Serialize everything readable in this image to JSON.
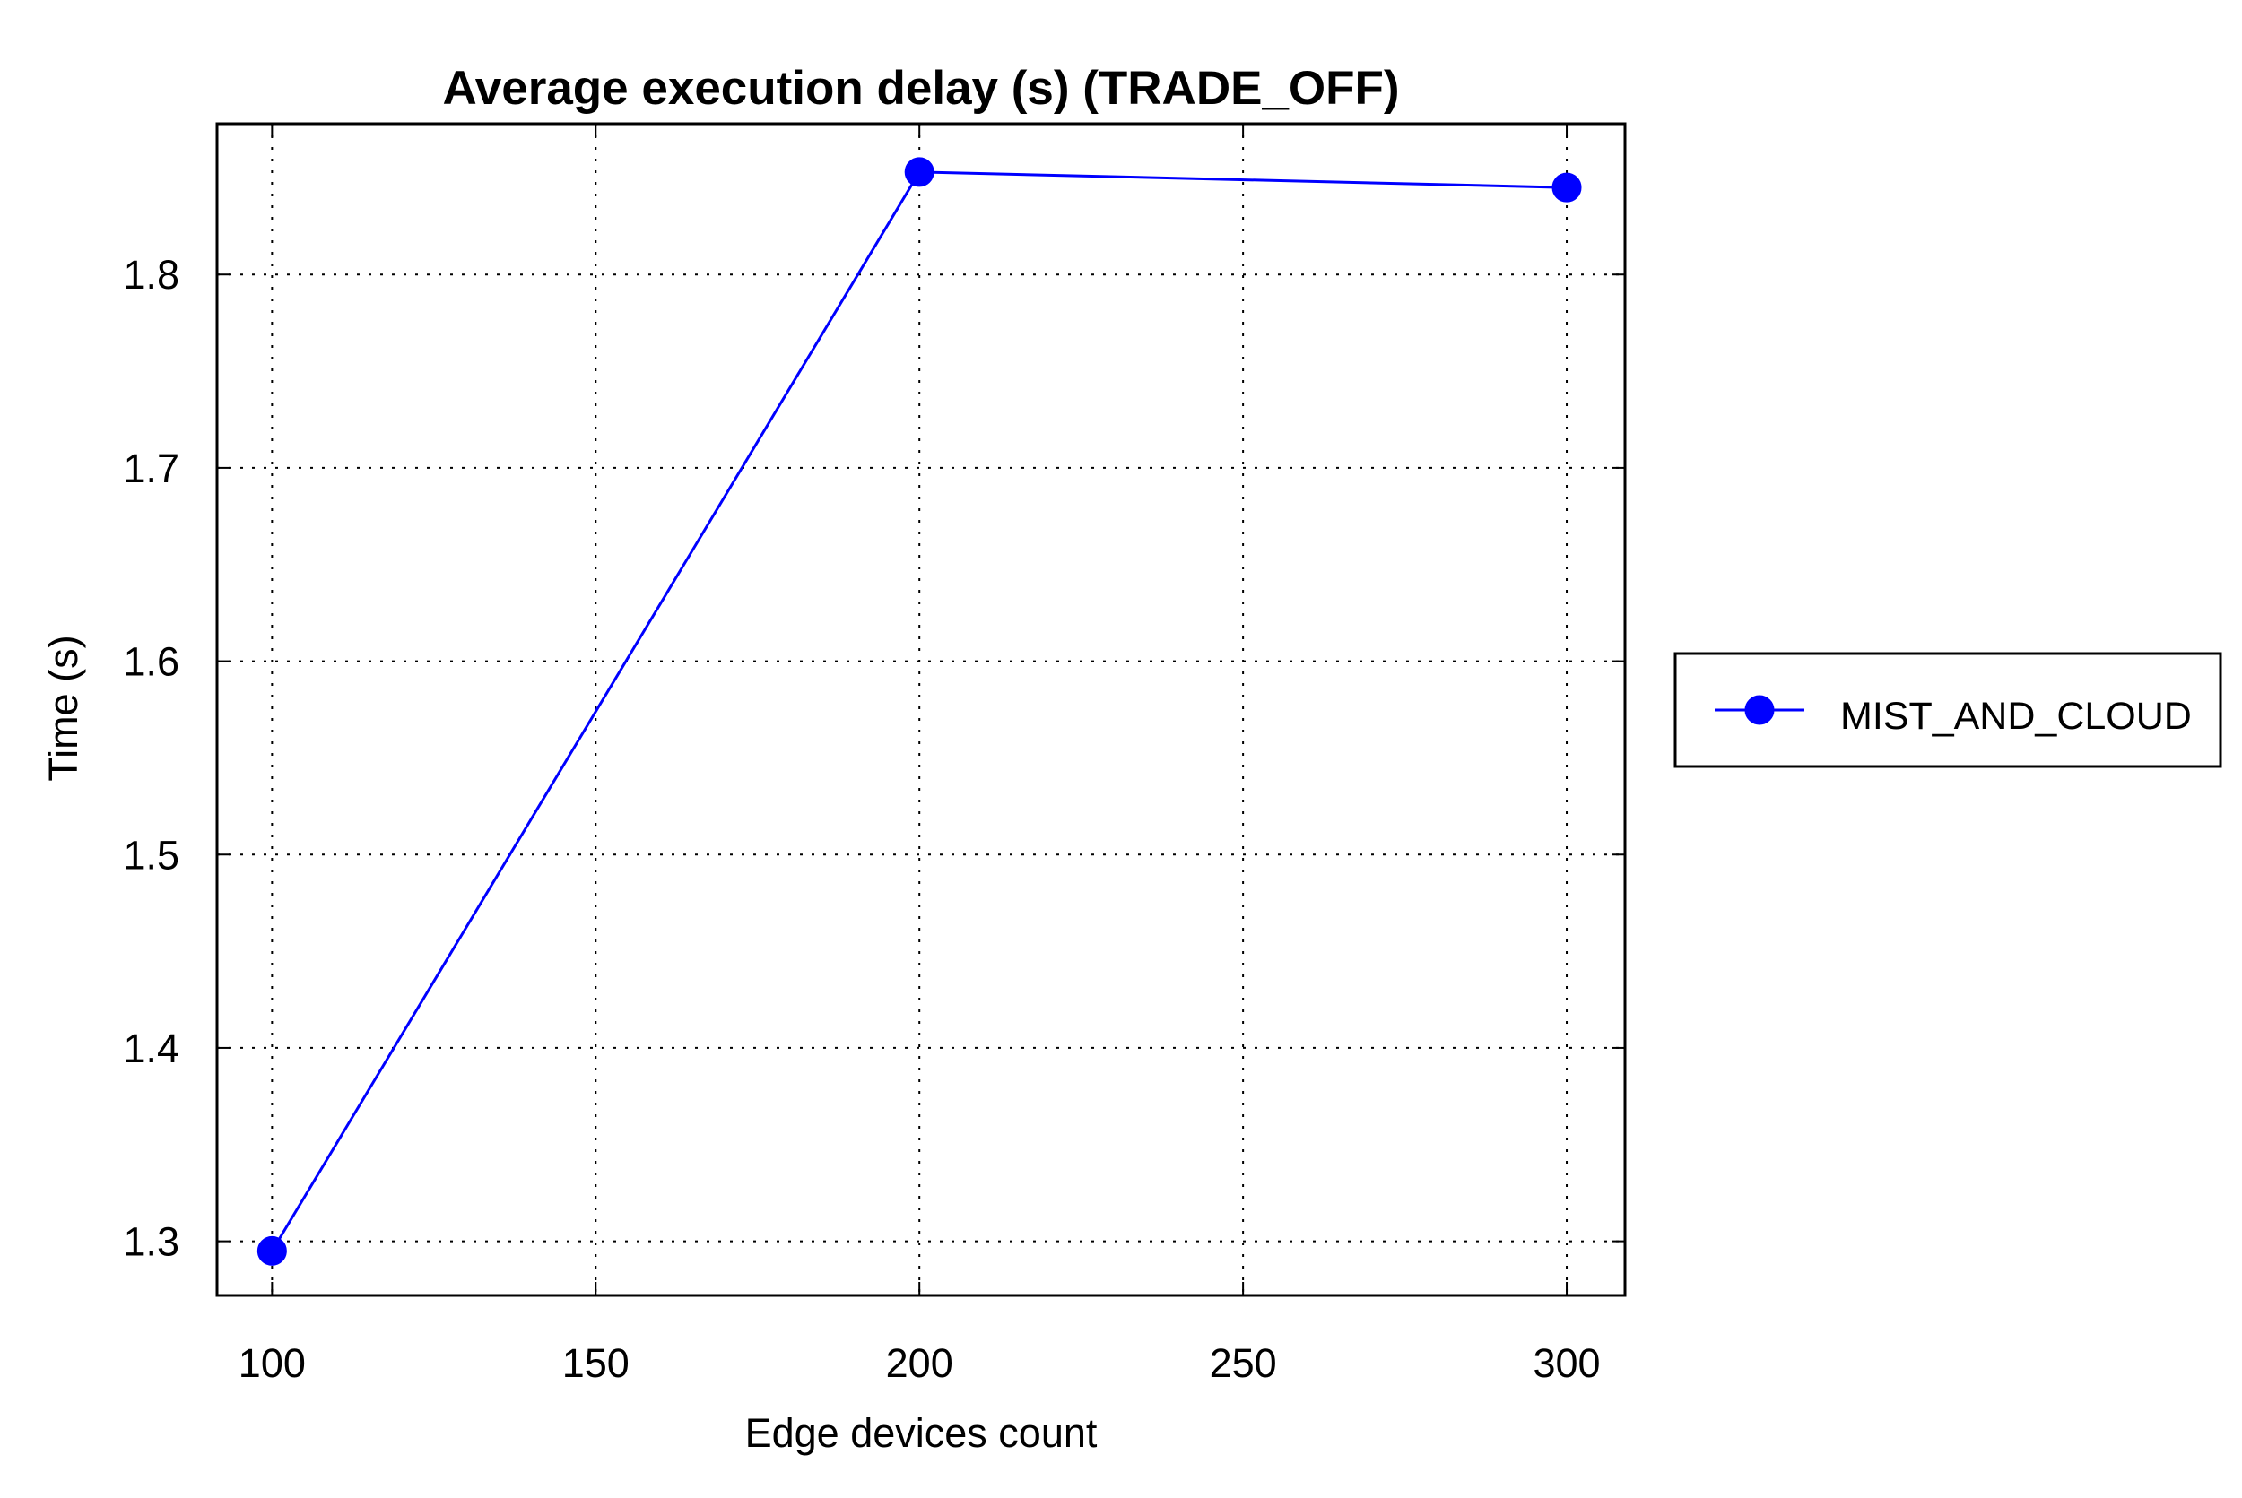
{
  "chart_data": {
    "type": "line",
    "title": "Average execution delay (s) (TRADE_OFF)",
    "xlabel": "Edge devices count",
    "ylabel": "Time (s)",
    "x": [
      100,
      200,
      300
    ],
    "x_ticks": [
      100,
      150,
      200,
      250,
      300
    ],
    "x_tick_labels": [
      "100",
      "150",
      "200",
      "250",
      "300"
    ],
    "xlim": [
      91.5,
      309
    ],
    "y_ticks": [
      1.3,
      1.4,
      1.5,
      1.6,
      1.7,
      1.8
    ],
    "y_tick_labels": [
      "1.3",
      "1.4",
      "1.5",
      "1.6",
      "1.7",
      "1.8"
    ],
    "ylim": [
      1.272,
      1.878
    ],
    "grid": true,
    "legend_position": "outside-right",
    "series": [
      {
        "name": "MIST_AND_CLOUD",
        "color": "#0000ff",
        "marker": "circle",
        "values": [
          1.295,
          1.853,
          1.845
        ]
      }
    ]
  }
}
